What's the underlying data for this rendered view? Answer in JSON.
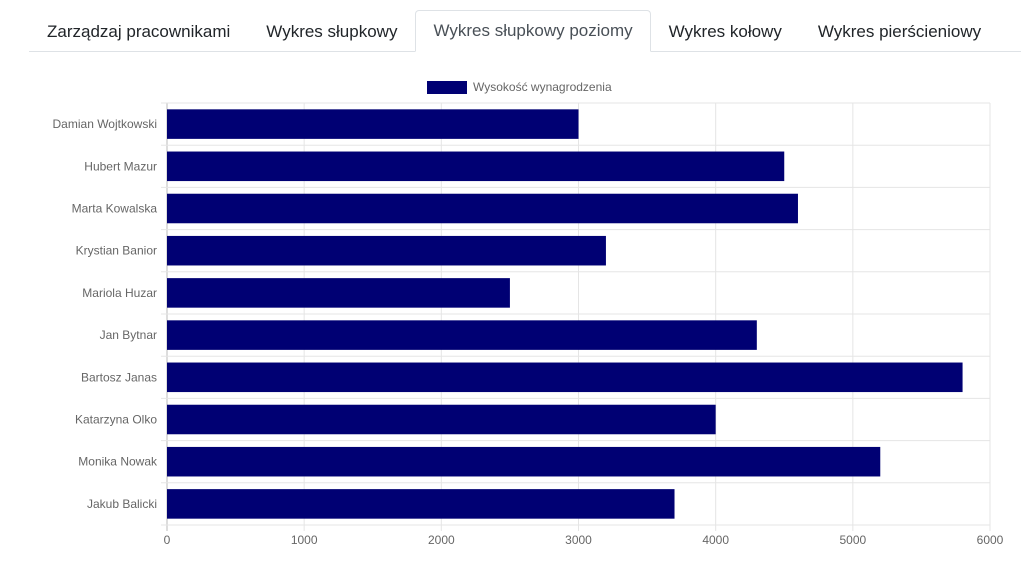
{
  "tabs": [
    {
      "label": "Zarządzaj pracownikami",
      "active": false
    },
    {
      "label": "Wykres słupkowy",
      "active": false
    },
    {
      "label": "Wykres słupkowy poziomy",
      "active": true
    },
    {
      "label": "Wykres kołowy",
      "active": false
    },
    {
      "label": "Wykres pierścieniowy",
      "active": false
    }
  ],
  "chart_data": {
    "type": "bar",
    "orientation": "horizontal",
    "categories": [
      "Damian Wojtkowski",
      "Hubert Mazur",
      "Marta Kowalska",
      "Krystian Banior",
      "Mariola Huzar",
      "Jan Bytnar",
      "Bartosz Janas",
      "Katarzyna Olko",
      "Monika Nowak",
      "Jakub Balicki"
    ],
    "series": [
      {
        "name": "Wysokość wynagrodzenia",
        "values": [
          3000,
          4500,
          4600,
          3200,
          2500,
          4300,
          5800,
          4000,
          5200,
          3700
        ],
        "color": "#000073"
      }
    ],
    "xlim": [
      0,
      6000
    ],
    "x_ticks": [
      "0",
      "1000",
      "2000",
      "3000",
      "4000",
      "5000",
      "6000"
    ],
    "grid": true,
    "legend": "top"
  }
}
